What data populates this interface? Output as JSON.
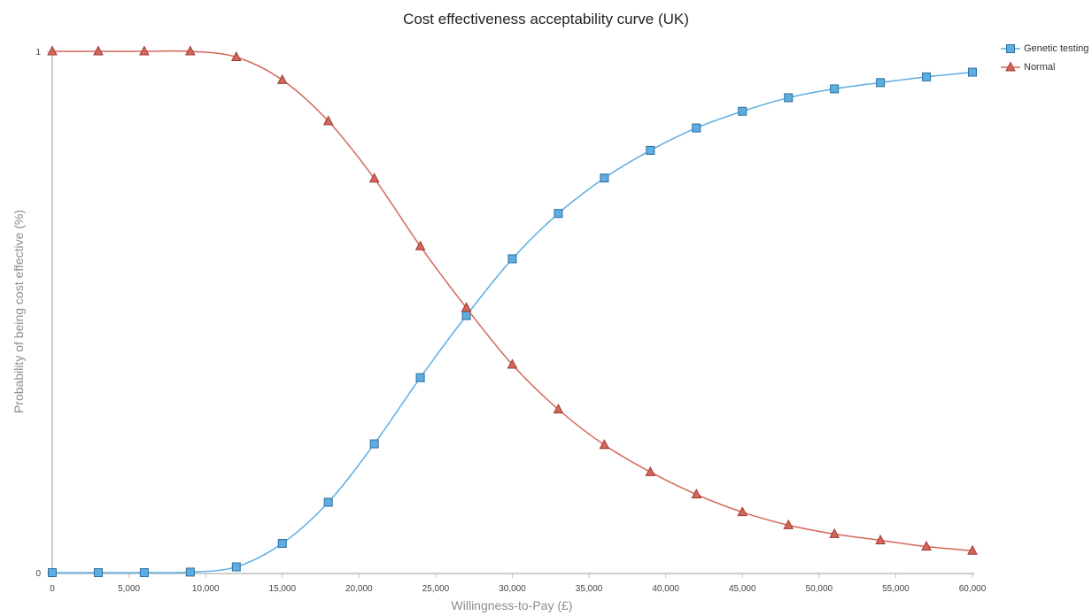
{
  "chart_data": {
    "type": "line",
    "title": "Cost effectiveness acceptability curve (UK)",
    "xlabel": "Willingness-to-Pay (£)",
    "ylabel": "Probability of being cost effective (%)",
    "xlim": [
      0,
      60000
    ],
    "ylim": [
      0,
      1
    ],
    "x_ticks": [
      0,
      5000,
      10000,
      15000,
      20000,
      25000,
      30000,
      35000,
      40000,
      45000,
      50000,
      55000,
      60000
    ],
    "x_tick_labels": [
      "0",
      "5,000",
      "10,000",
      "15,000",
      "20,000",
      "25,000",
      "30,000",
      "35,000",
      "40,000",
      "45,000",
      "50,000",
      "55,000",
      "60,000"
    ],
    "y_ticks": [
      0,
      1
    ],
    "y_tick_labels": [
      "0",
      "1"
    ],
    "grid": false,
    "legend_position": "top-right",
    "x": [
      0,
      3000,
      6000,
      9000,
      12000,
      15000,
      18000,
      21000,
      24000,
      27000,
      30000,
      33000,
      36000,
      39000,
      42000,
      45000,
      48000,
      51000,
      54000,
      57000,
      60000
    ],
    "series": [
      {
        "name": "Genetic testing",
        "marker": "square",
        "color": "#5dade2",
        "values": [
          0.0,
          0.0,
          0.0,
          0.001,
          0.011,
          0.056,
          0.135,
          0.247,
          0.374,
          0.493,
          0.602,
          0.689,
          0.757,
          0.81,
          0.853,
          0.885,
          0.911,
          0.928,
          0.94,
          0.951,
          0.96
        ]
      },
      {
        "name": "Normal",
        "marker": "triangle",
        "color": "#d4665a",
        "values": [
          1.0,
          1.0,
          1.0,
          1.0,
          0.989,
          0.945,
          0.866,
          0.756,
          0.626,
          0.508,
          0.399,
          0.313,
          0.245,
          0.193,
          0.15,
          0.116,
          0.091,
          0.074,
          0.062,
          0.05,
          0.042
        ]
      }
    ]
  }
}
